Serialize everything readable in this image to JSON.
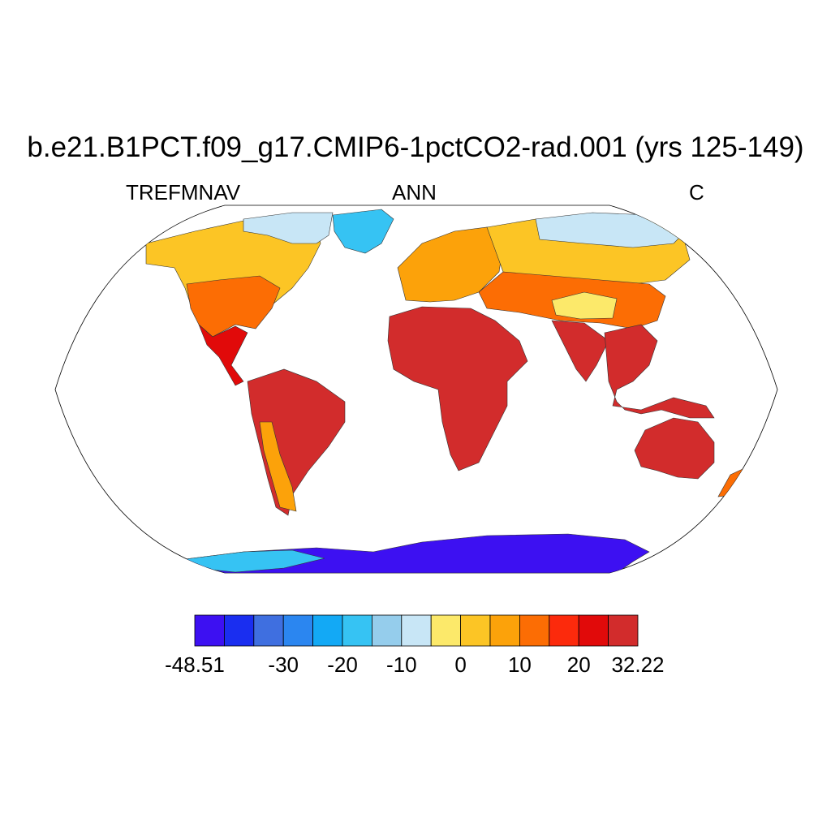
{
  "title": "b.e21.B1PCT.f09_g17.CMIP6-1pctCO2-rad.001 (yrs 125-149)",
  "subtitles": {
    "left": "TREFMNAV",
    "center": "ANN",
    "right": "C"
  },
  "colorbar": {
    "colors": [
      "#3d10f2",
      "#1a2ef0",
      "#3f6fe0",
      "#2b86f0",
      "#13a9f5",
      "#36c3f3",
      "#95cdec",
      "#c8e6f6",
      "#fce96a",
      "#fcc525",
      "#fca20a",
      "#fc6d04",
      "#fc2a0c",
      "#e10a0a",
      "#d22c2c"
    ],
    "tick_labels": [
      "-48.51",
      "-30",
      "-20",
      "-10",
      "0",
      "10",
      "20",
      "32.22"
    ],
    "tick_boundaries": [
      0,
      3,
      5,
      7,
      9,
      11,
      13,
      15
    ]
  },
  "map": {
    "projection": "Robinson",
    "ocean_color": "#ffffff",
    "regions": [
      {
        "name": "arctic-canada",
        "color": "#c8e6f6"
      },
      {
        "name": "greenland",
        "color": "#36c3f3"
      },
      {
        "name": "north-america",
        "color": "#fcc525"
      },
      {
        "name": "usa",
        "color": "#fc6d04"
      },
      {
        "name": "central-america",
        "color": "#e10a0a"
      },
      {
        "name": "south-america",
        "color": "#d22c2c"
      },
      {
        "name": "andes",
        "color": "#fca20a"
      },
      {
        "name": "europe",
        "color": "#fca20a"
      },
      {
        "name": "siberia",
        "color": "#fcc525"
      },
      {
        "name": "arctic-siberia",
        "color": "#c8e6f6"
      },
      {
        "name": "central-asia",
        "color": "#fc6d04"
      },
      {
        "name": "tibet",
        "color": "#fce96a"
      },
      {
        "name": "africa",
        "color": "#d22c2c"
      },
      {
        "name": "india",
        "color": "#d22c2c"
      },
      {
        "name": "southeast-asia",
        "color": "#d22c2c"
      },
      {
        "name": "australia",
        "color": "#d22c2c"
      },
      {
        "name": "new-zealand",
        "color": "#fc6d04"
      },
      {
        "name": "antarctica",
        "color": "#3d10f2"
      }
    ]
  }
}
